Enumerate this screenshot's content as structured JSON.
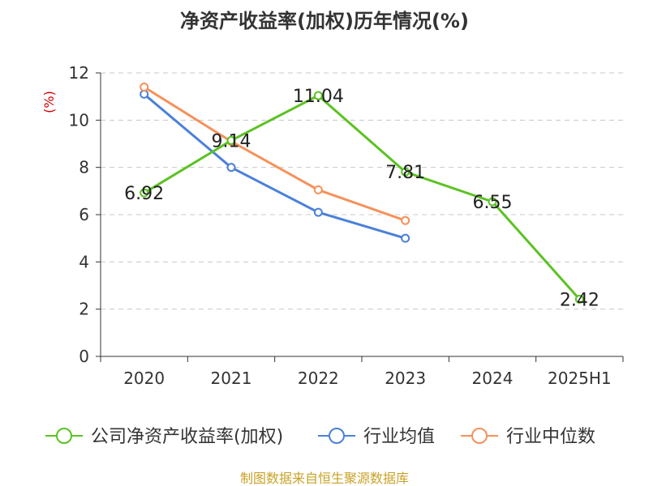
{
  "colors": {
    "roe": "#5bc221",
    "industry_avg": "#4a80d9",
    "industry_median": "#f5915a",
    "grid": "#c8c8c8",
    "axis": "#333333",
    "unit": "#cc0000",
    "source": "#c9a227"
  },
  "chart_data": {
    "type": "line",
    "title": "净资产收益率(加权)历年情况(%)",
    "ylabel": "(%)",
    "xlabel": "",
    "categories": [
      "2020",
      "2021",
      "2022",
      "2023",
      "2024",
      "2025H1"
    ],
    "ylim": [
      0,
      12
    ],
    "yticks": [
      0,
      2,
      4,
      6,
      8,
      10,
      12
    ],
    "grid": "horizontal dashed",
    "legend_position": "bottom",
    "series": [
      {
        "name": "公司净资产收益率(加权)",
        "color_key": "roe",
        "values": [
          6.92,
          9.14,
          11.04,
          7.81,
          6.55,
          2.42
        ],
        "labels": [
          "6.92",
          "9.14",
          "11.04",
          "7.81",
          "6.55",
          "2.42"
        ]
      },
      {
        "name": "行业均值",
        "color_key": "industry_avg",
        "values": [
          11.1,
          8.0,
          6.1,
          5.0,
          null,
          null
        ]
      },
      {
        "name": "行业中位数",
        "color_key": "industry_median",
        "values": [
          11.4,
          9.1,
          7.05,
          5.75,
          null,
          null
        ]
      }
    ]
  },
  "footer": {
    "source": "制图数据来自恒生聚源数据库"
  }
}
